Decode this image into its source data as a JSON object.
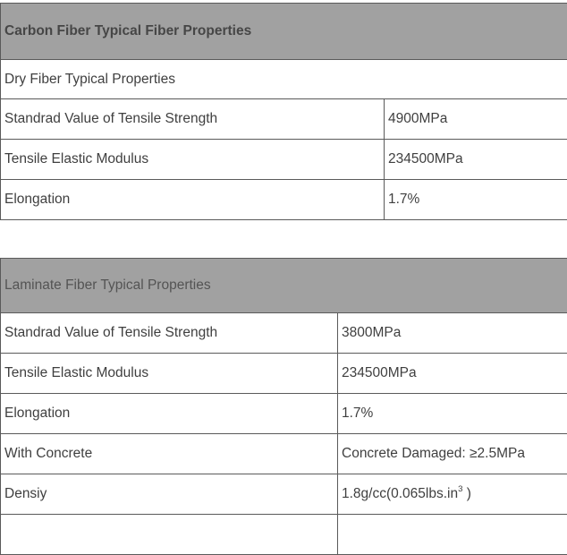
{
  "colors": {
    "header_bg": "#a1a1a1",
    "border": "#5a5a5a",
    "text": "#3f3f3f"
  },
  "carbon_table": {
    "title": "Carbon Fiber Typical Fiber Properties",
    "subtitle": "Dry Fiber Typical Properties",
    "rows": [
      {
        "label": "Standrad Value of Tensile Strength",
        "value": "4900MPa"
      },
      {
        "label": "Tensile Elastic Modulus",
        "value": "234500MPa"
      },
      {
        "label": "Elongation",
        "value": "1.7%"
      }
    ]
  },
  "laminate_table": {
    "title": "Laminate Fiber Typical Properties",
    "rows": [
      {
        "label": "Standrad Value of Tensile Strength",
        "value": "3800MPa"
      },
      {
        "label": "Tensile Elastic Modulus",
        "value": "234500MPa"
      },
      {
        "label": "Elongation",
        "value": "1.7%"
      },
      {
        "label": "With Concrete",
        "value": "Concrete Damaged: ≥2.5MPa"
      },
      {
        "label": "Densiy",
        "value_pre": "1.8g/cc(0.065lbs.in",
        "value_sup": "3",
        "value_post": " )"
      }
    ]
  }
}
